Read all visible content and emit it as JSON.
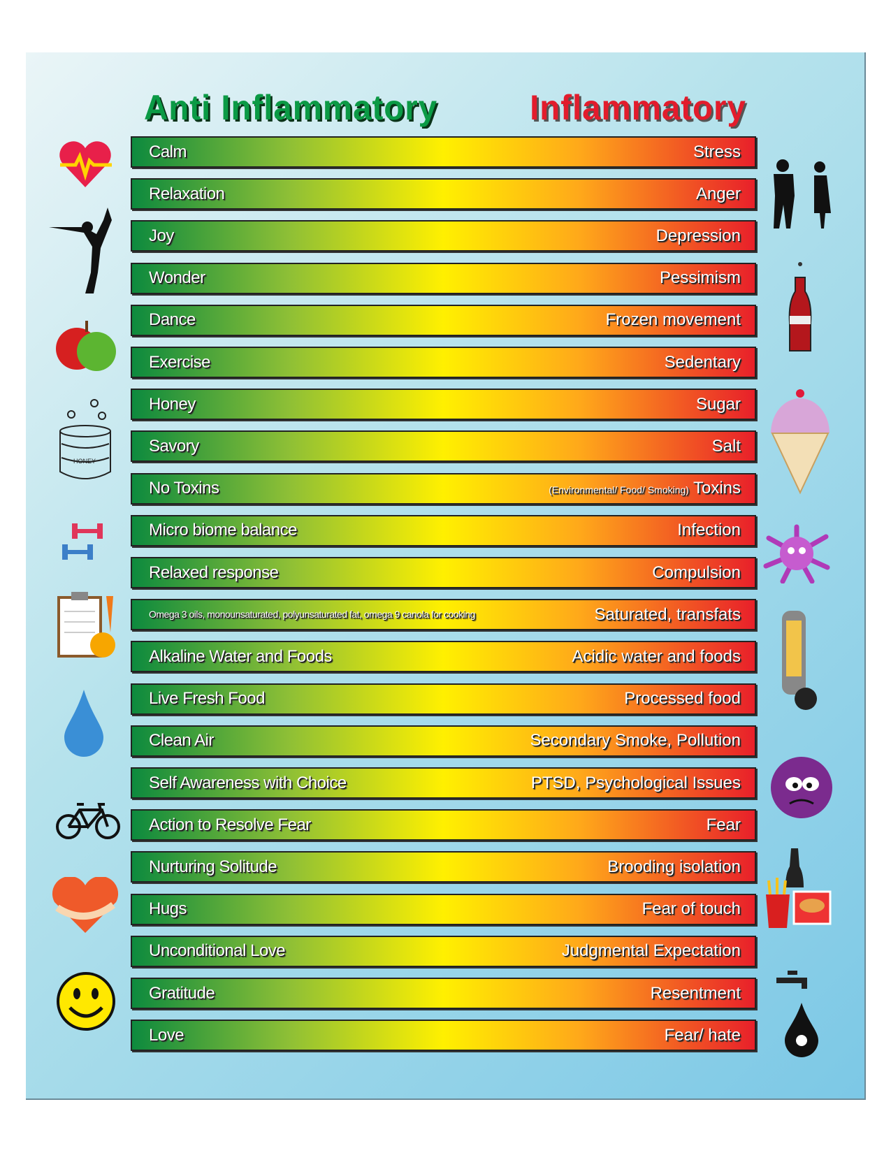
{
  "headers": {
    "anti": "Anti Inflammatory",
    "inflammatory": "Inflammatory"
  },
  "rows": [
    {
      "anti": "Calm",
      "inflammatory": "Stress"
    },
    {
      "anti": "Relaxation",
      "inflammatory": "Anger"
    },
    {
      "anti": "Joy",
      "inflammatory": "Depression"
    },
    {
      "anti": "Wonder",
      "inflammatory": "Pessimism"
    },
    {
      "anti": "Dance",
      "inflammatory": "Frozen movement"
    },
    {
      "anti": "Exercise",
      "inflammatory": "Sedentary"
    },
    {
      "anti": "Honey",
      "inflammatory": "Sugar"
    },
    {
      "anti": "Savory",
      "inflammatory": "Salt"
    },
    {
      "anti": "No Toxins",
      "inflammatory": "Toxins",
      "note": "(Environmental/ Food/ Smoking)"
    },
    {
      "anti": "Micro biome balance",
      "inflammatory": "Infection"
    },
    {
      "anti": "Relaxed response",
      "inflammatory": "Compulsion"
    },
    {
      "anti": "Omega 3 oils, monounsaturated, polyunsaturated fat, omega 9 canola for cooking",
      "inflammatory": "Saturated, transfats"
    },
    {
      "anti": "Alkaline Water and Foods",
      "inflammatory": "Acidic water and foods"
    },
    {
      "anti": "Live Fresh Food",
      "inflammatory": "Processed food"
    },
    {
      "anti": "Clean Air",
      "inflammatory": "Secondary Smoke, Pollution"
    },
    {
      "anti": "Self Awareness with Choice",
      "inflammatory": "PTSD, Psychological Issues"
    },
    {
      "anti": "Action to Resolve Fear",
      "inflammatory": "Fear"
    },
    {
      "anti": "Nurturing Solitude",
      "inflammatory": "Brooding isolation"
    },
    {
      "anti": "Hugs",
      "inflammatory": "Fear of touch"
    },
    {
      "anti": "Unconditional Love",
      "inflammatory": "Judgmental Expectation"
    },
    {
      "anti": "Gratitude",
      "inflammatory": "Resentment"
    },
    {
      "anti": "Love",
      "inflammatory": "Fear/ hate"
    }
  ],
  "honey_label": "HONEY",
  "colors": {
    "green": "#0b9a45",
    "red": "#e21c2c",
    "yellow": "#fff000"
  }
}
